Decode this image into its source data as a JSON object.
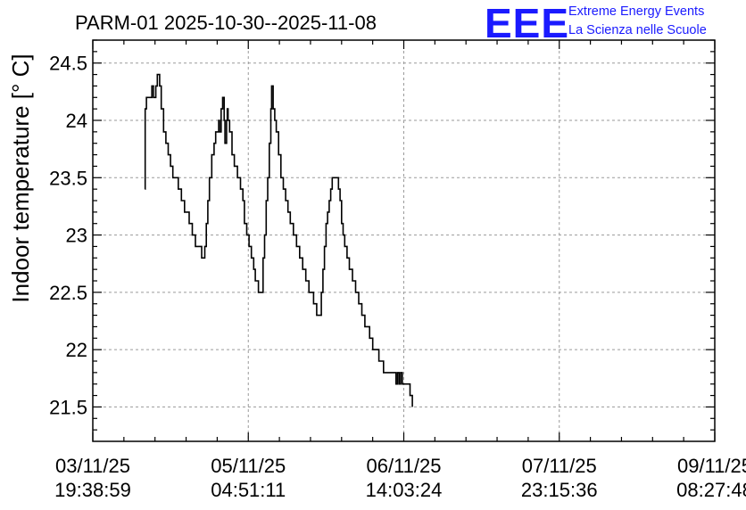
{
  "chart_data": {
    "type": "line",
    "title": "PARM-01 2025-10-30--2025-11-08",
    "xlabel": "",
    "ylabel": "Indoor temperature [° C]",
    "ylim": [
      21.2,
      24.7
    ],
    "y_ticks": [
      21.5,
      22,
      22.5,
      23,
      23.5,
      24,
      24.5
    ],
    "y_tick_labels": [
      "21.5",
      "22",
      "22.5",
      "23",
      "23.5",
      "24",
      "24.5"
    ],
    "xlim": [
      0,
      4
    ],
    "x_tick_labels": [
      {
        "date": "03/11/25",
        "time": "19:38:59"
      },
      {
        "date": "05/11/25",
        "time": "04:51:11"
      },
      {
        "date": "06/11/25",
        "time": "14:03:24"
      },
      {
        "date": "07/11/25",
        "time": "23:15:36"
      },
      {
        "date": "09/11/25",
        "time": "08:27:48"
      }
    ],
    "grid": true,
    "series": [
      {
        "values": [
          [
            0.335,
            23.4
          ],
          [
            0.337,
            24.1
          ],
          [
            0.345,
            24.2
          ],
          [
            0.38,
            24.3
          ],
          [
            0.39,
            24.2
          ],
          [
            0.405,
            24.3
          ],
          [
            0.415,
            24.4
          ],
          [
            0.43,
            24.3
          ],
          [
            0.44,
            24.1
          ],
          [
            0.455,
            23.9
          ],
          [
            0.47,
            23.8
          ],
          [
            0.485,
            23.7
          ],
          [
            0.5,
            23.6
          ],
          [
            0.515,
            23.5
          ],
          [
            0.55,
            23.4
          ],
          [
            0.57,
            23.3
          ],
          [
            0.59,
            23.2
          ],
          [
            0.62,
            23.1
          ],
          [
            0.64,
            23.0
          ],
          [
            0.66,
            22.9
          ],
          [
            0.7,
            22.8
          ],
          [
            0.72,
            22.9
          ],
          [
            0.73,
            23.1
          ],
          [
            0.74,
            23.3
          ],
          [
            0.75,
            23.5
          ],
          [
            0.765,
            23.7
          ],
          [
            0.78,
            23.8
          ],
          [
            0.79,
            23.9
          ],
          [
            0.81,
            24.0
          ],
          [
            0.815,
            23.9
          ],
          [
            0.825,
            24.1
          ],
          [
            0.835,
            24.2
          ],
          [
            0.845,
            24.0
          ],
          [
            0.85,
            23.8
          ],
          [
            0.86,
            24.0
          ],
          [
            0.865,
            24.1
          ],
          [
            0.87,
            24.0
          ],
          [
            0.88,
            23.9
          ],
          [
            0.895,
            23.7
          ],
          [
            0.91,
            23.6
          ],
          [
            0.93,
            23.5
          ],
          [
            0.95,
            23.4
          ],
          [
            0.965,
            23.3
          ],
          [
            0.975,
            23.1
          ],
          [
            0.99,
            23.0
          ],
          [
            1.005,
            22.9
          ],
          [
            1.02,
            22.8
          ],
          [
            1.035,
            22.7
          ],
          [
            1.045,
            22.6
          ],
          [
            1.065,
            22.5
          ],
          [
            1.09,
            22.5
          ],
          [
            1.095,
            22.8
          ],
          [
            1.105,
            23.0
          ],
          [
            1.115,
            23.3
          ],
          [
            1.125,
            23.5
          ],
          [
            1.135,
            23.8
          ],
          [
            1.145,
            24.1
          ],
          [
            1.15,
            24.3
          ],
          [
            1.16,
            24.1
          ],
          [
            1.17,
            24.0
          ],
          [
            1.18,
            23.9
          ],
          [
            1.195,
            23.7
          ],
          [
            1.21,
            23.5
          ],
          [
            1.225,
            23.4
          ],
          [
            1.24,
            23.3
          ],
          [
            1.255,
            23.2
          ],
          [
            1.27,
            23.1
          ],
          [
            1.29,
            23.0
          ],
          [
            1.31,
            22.9
          ],
          [
            1.33,
            22.8
          ],
          [
            1.35,
            22.7
          ],
          [
            1.37,
            22.6
          ],
          [
            1.39,
            22.5
          ],
          [
            1.42,
            22.4
          ],
          [
            1.44,
            22.3
          ],
          [
            1.46,
            22.3
          ],
          [
            1.47,
            22.5
          ],
          [
            1.48,
            22.7
          ],
          [
            1.49,
            22.9
          ],
          [
            1.5,
            23.1
          ],
          [
            1.51,
            23.2
          ],
          [
            1.52,
            23.3
          ],
          [
            1.53,
            23.4
          ],
          [
            1.54,
            23.5
          ],
          [
            1.57,
            23.5
          ],
          [
            1.58,
            23.4
          ],
          [
            1.59,
            23.3
          ],
          [
            1.6,
            23.1
          ],
          [
            1.61,
            23.0
          ],
          [
            1.62,
            22.9
          ],
          [
            1.635,
            22.8
          ],
          [
            1.65,
            22.7
          ],
          [
            1.67,
            22.6
          ],
          [
            1.69,
            22.5
          ],
          [
            1.71,
            22.4
          ],
          [
            1.73,
            22.3
          ],
          [
            1.75,
            22.2
          ],
          [
            1.78,
            22.1
          ],
          [
            1.8,
            22.0
          ],
          [
            1.84,
            21.9
          ],
          [
            1.87,
            21.8
          ],
          [
            1.94,
            21.8
          ],
          [
            1.95,
            21.7
          ],
          [
            1.96,
            21.8
          ],
          [
            1.97,
            21.7
          ],
          [
            1.98,
            21.8
          ],
          [
            1.99,
            21.7
          ],
          [
            2.03,
            21.7
          ],
          [
            2.04,
            21.6
          ],
          [
            2.055,
            21.5
          ]
        ]
      }
    ]
  },
  "logo": {
    "mark": "EEE",
    "line1": "Extreme Energy Events",
    "line2": "La Scienza nelle Scuole"
  }
}
